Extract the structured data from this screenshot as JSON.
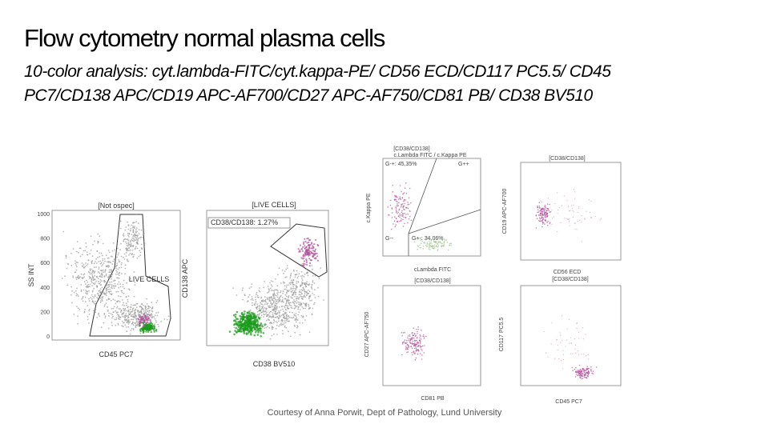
{
  "header": {
    "title": "Flow cytometry normal plasma cells",
    "subtitle_lines": [
      "10-color analysis: cyt.lambda-FITC/cyt.kappa-PE/ CD56 ECD/CD117 PC5.5/ CD45",
      "PC7/CD138 APC/CD19 APC-AF700/CD27 APC-AF750/CD81 PB/ CD38 BV510"
    ]
  },
  "plots": [
    {
      "gate": "[Not ospec]",
      "y_label": "SS INT",
      "x_label": "CD45 PC7",
      "region": "LIVE CELLS",
      "y_ticks": [
        "1000",
        "800",
        "600",
        "400",
        "200",
        "0"
      ]
    },
    {
      "gate": "[LIVE CELLS]",
      "y_label": "CD138 APC",
      "x_label": "CD38 BV510",
      "region": "CD38/CD138: 1.27%"
    },
    {
      "gate": "[CD38/CD138]",
      "subtitle": "c.Lambda FITC / c.Kappa PE",
      "y_label": "c.Kappa PE",
      "x_label": "cLambda FITC",
      "quadrants": [
        "G-+: 45,35%",
        "G++",
        "G--",
        "G+-: 34,06%"
      ]
    },
    {
      "gate": "[CD38/CD138]",
      "y_label": "CD19 APC-AF700",
      "x_label": "CD56 ECD"
    },
    {
      "gate": "[CD38/CD138]",
      "y_label": "CD27 APC-AF750",
      "x_label": "CD81 PB"
    },
    {
      "gate": "[CD38/CD138]",
      "y_label": "CD117 PC5.5",
      "x_label": "CD45 PC7"
    }
  ],
  "footer": "Courtesy of Anna Porwit, Dept of Pathology, Lund University"
}
